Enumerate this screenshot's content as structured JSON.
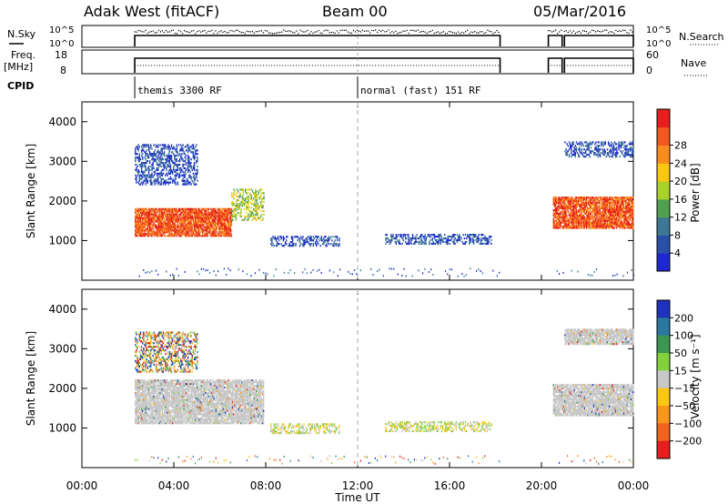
{
  "header": {
    "radar": "Adak West (fitACF)",
    "beam": "Beam 00",
    "date": "05/Mar/2016"
  },
  "small_panels": {
    "nsky_label": "N.Sky",
    "nsky_ticks": [
      "10^5",
      "10^0"
    ],
    "nsearch_label": "N.Search",
    "nsearch_ticks": [
      "10^5",
      "10^0"
    ],
    "freq_label": "Freq.",
    "freq_unit": "[MHz]",
    "freq_ticks": [
      "18",
      "8"
    ],
    "nave_label": "Nave",
    "nave_ticks": [
      "60",
      "0"
    ],
    "cpid_label": "CPID",
    "cpid_entries": [
      {
        "label": "themis 3300 RF",
        "start_hour": 2.3
      },
      {
        "label": "normal (fast) 151 RF",
        "start_hour": 12.0
      }
    ]
  },
  "x_axis": {
    "label": "Time UT",
    "ticks": [
      "00:00",
      "04:00",
      "08:00",
      "12:00",
      "16:00",
      "20:00",
      "00:00"
    ],
    "range_hours": [
      0,
      24
    ]
  },
  "chart_data": [
    {
      "type": "heatmap",
      "title": "",
      "ylabel": "Slant Range [km]",
      "ylim": [
        0,
        4500
      ],
      "yticks": [
        "1000",
        "2000",
        "3000",
        "4000"
      ],
      "colorbar_label": "Power [dB]",
      "colorbar_ticks": [
        "4",
        "8",
        "12",
        "16",
        "20",
        "24",
        "28"
      ],
      "colorbar_colors": [
        "#1e28d2",
        "#2850aa",
        "#3c7896",
        "#50a050",
        "#aad22d",
        "#fac814",
        "#fa8c1e",
        "#f05a1e",
        "#e61e1e"
      ],
      "regions": [
        {
          "t0": 2.3,
          "t1": 6.5,
          "r0": 1100,
          "r1": 1800,
          "level": "high"
        },
        {
          "t0": 6.5,
          "t1": 7.9,
          "r0": 1500,
          "r1": 2300,
          "level": "mid"
        },
        {
          "t0": 2.3,
          "t1": 5.0,
          "r0": 2400,
          "r1": 3400,
          "level": "low"
        },
        {
          "t0": 8.2,
          "t1": 11.2,
          "r0": 850,
          "r1": 1100,
          "level": "low"
        },
        {
          "t0": 13.2,
          "t1": 17.8,
          "r0": 900,
          "r1": 1150,
          "level": "low"
        },
        {
          "t0": 20.5,
          "t1": 24.0,
          "r0": 1300,
          "r1": 2100,
          "level": "high"
        },
        {
          "t0": 21.0,
          "t1": 24.0,
          "r0": 3100,
          "r1": 3500,
          "level": "low"
        }
      ]
    },
    {
      "type": "heatmap",
      "title": "",
      "ylabel": "Slant Range [km]",
      "ylim": [
        0,
        4500
      ],
      "yticks": [
        "1000",
        "2000",
        "3000",
        "4000"
      ],
      "colorbar_label": "Velocity [m s⁻¹]",
      "colorbar_ticks": [
        "200",
        "100",
        "50",
        "15",
        "−15",
        "−50",
        "−100",
        "−200"
      ],
      "colorbar_colors": [
        "#1e32be",
        "#2878a0",
        "#3c9650",
        "#82d23c",
        "#c8c8c8",
        "#fac814",
        "#fa961e",
        "#f0641e",
        "#e61e1e"
      ],
      "regions": [
        {
          "t0": 2.3,
          "t1": 7.9,
          "r0": 1100,
          "r1": 2200,
          "level": "ground"
        },
        {
          "t0": 2.3,
          "t1": 5.0,
          "r0": 2400,
          "r1": 3400,
          "level": "mixed"
        },
        {
          "t0": 8.2,
          "t1": 11.2,
          "r0": 850,
          "r1": 1100,
          "level": "slow"
        },
        {
          "t0": 13.2,
          "t1": 17.8,
          "r0": 900,
          "r1": 1150,
          "level": "slow"
        },
        {
          "t0": 20.5,
          "t1": 24.0,
          "r0": 1300,
          "r1": 2100,
          "level": "ground"
        },
        {
          "t0": 21.0,
          "t1": 24.0,
          "r0": 3100,
          "r1": 3500,
          "level": "ground"
        }
      ]
    }
  ]
}
